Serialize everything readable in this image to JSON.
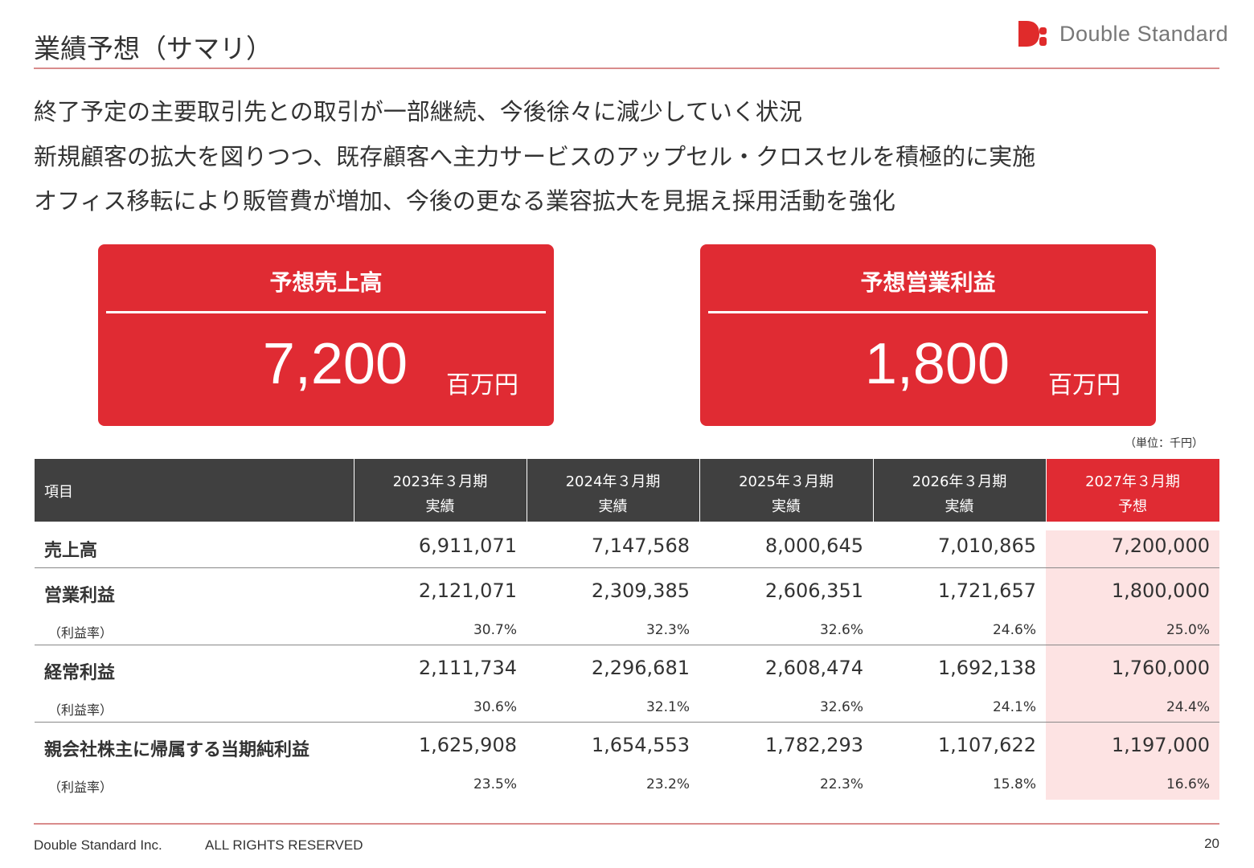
{
  "header": {
    "title": "業績予想（サマリ）",
    "logo_text": "Double Standard"
  },
  "bullets": [
    "終了予定の主要取引先との取引が一部継続、今後徐々に減少していく状況",
    "新規顧客の拡大を図りつつ、既存顧客へ主力サービスのアップセル・クロスセルを積極的に実施",
    "オフィス移転により販管費が増加、今後の更なる業容拡大を見据え採用活動を強化"
  ],
  "kpis": [
    {
      "label": "予想売上高",
      "value": "7,200",
      "unit": "百万円"
    },
    {
      "label": "予想営業利益",
      "value": "1,800",
      "unit": "百万円"
    }
  ],
  "unit_note": "（単位：千円）",
  "table": {
    "first_header": "項目",
    "columns": [
      {
        "line1": "2023年３月期",
        "line2": "実績"
      },
      {
        "line1": "2024年３月期",
        "line2": "実績"
      },
      {
        "line1": "2025年３月期",
        "line2": "実績"
      },
      {
        "line1": "2026年３月期",
        "line2": "実績"
      },
      {
        "line1": "2027年３月期",
        "line2": "予想"
      }
    ],
    "rows": [
      {
        "label": "売上高",
        "values": [
          "6,911,071",
          "7,147,568",
          "8,000,645",
          "7,010,865",
          "7,200,000"
        ]
      },
      {
        "label": "営業利益",
        "values": [
          "2,121,071",
          "2,309,385",
          "2,606,351",
          "1,721,657",
          "1,800,000"
        ],
        "sub": {
          "label": "（利益率）",
          "values": [
            "30.7%",
            "32.3%",
            "32.6%",
            "24.6%",
            "25.0%"
          ]
        }
      },
      {
        "label": "経常利益",
        "values": [
          "2,111,734",
          "2,296,681",
          "2,608,474",
          "1,692,138",
          "1,760,000"
        ],
        "sub": {
          "label": "（利益率）",
          "values": [
            "30.6%",
            "32.1%",
            "32.6%",
            "24.1%",
            "24.4%"
          ]
        }
      },
      {
        "label": "親会社株主に帰属する当期純利益",
        "values": [
          "1,625,908",
          "1,654,553",
          "1,782,293",
          "1,107,622",
          "1,197,000"
        ],
        "sub": {
          "label": "（利益率）",
          "values": [
            "23.5%",
            "23.2%",
            "22.3%",
            "15.8%",
            "16.6%"
          ]
        }
      }
    ]
  },
  "footer": {
    "company": "Double Standard Inc.",
    "rights": "ALL RIGHTS RESERVED",
    "page": "20"
  }
}
